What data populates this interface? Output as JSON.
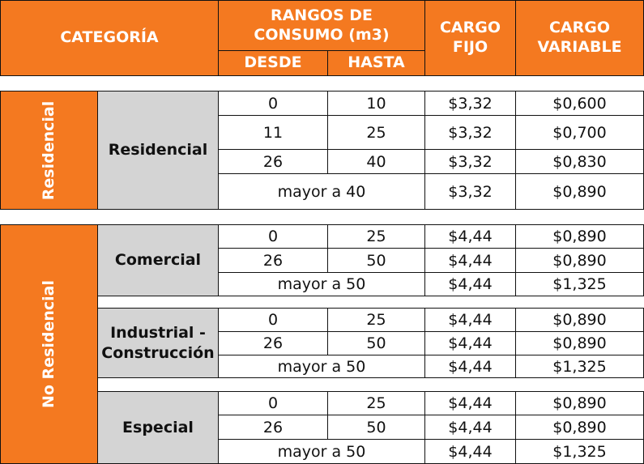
{
  "header": {
    "categoria": "CATEGORÍA",
    "rangos": "RANGOS DE CONSUMO (m3)",
    "desde": "DESDE",
    "hasta": "HASTA",
    "cargo_fijo": "CARGO FIJO",
    "cargo_variable": "CARGO VARIABLE"
  },
  "residencial": {
    "side_label": "Residencial",
    "subcategory": "Residencial",
    "rows": [
      {
        "desde": "0",
        "hasta": "10",
        "fijo": "$3,32",
        "variable": "$0,600"
      },
      {
        "desde": "11",
        "hasta": "25",
        "fijo": "$3,32",
        "variable": "$0,700"
      },
      {
        "desde": "26",
        "hasta": "40",
        "fijo": "$3,32",
        "variable": "$0,830"
      },
      {
        "range": "mayor a 40",
        "fijo": "$3,32",
        "variable": "$0,890"
      }
    ]
  },
  "no_residencial": {
    "side_label": "No Residencial",
    "groups": [
      {
        "subcategory": "Comercial",
        "rows": [
          {
            "desde": "0",
            "hasta": "25",
            "fijo": "$4,44",
            "variable": "$0,890"
          },
          {
            "desde": "26",
            "hasta": "50",
            "fijo": "$4,44",
            "variable": "$0,890"
          },
          {
            "range": "mayor a 50",
            "fijo": "$4,44",
            "variable": "$1,325"
          }
        ]
      },
      {
        "subcategory": "Industrial - Construcción",
        "rows": [
          {
            "desde": "0",
            "hasta": "25",
            "fijo": "$4,44",
            "variable": "$0,890"
          },
          {
            "desde": "26",
            "hasta": "50",
            "fijo": "$4,44",
            "variable": "$0,890"
          },
          {
            "range": "mayor a 50",
            "fijo": "$4,44",
            "variable": "$1,325"
          }
        ]
      },
      {
        "subcategory": "Especial",
        "rows": [
          {
            "desde": "0",
            "hasta": "25",
            "fijo": "$4,44",
            "variable": "$0,890"
          },
          {
            "desde": "26",
            "hasta": "50",
            "fijo": "$4,44",
            "variable": "$0,890"
          },
          {
            "range": "mayor a 50",
            "fijo": "$4,44",
            "variable": "$1,325"
          }
        ]
      }
    ]
  },
  "colors": {
    "header_bg": "#f47920",
    "header_text": "#ffffff",
    "subcategory_bg": "#d4d4d4"
  }
}
